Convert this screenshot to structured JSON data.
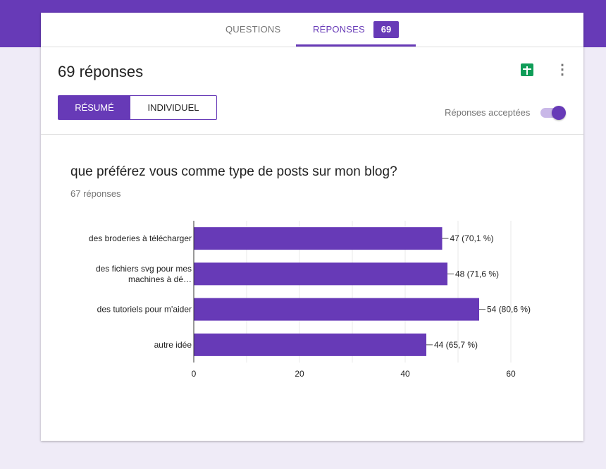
{
  "header": {
    "tabs": [
      {
        "label": "QUESTIONS"
      },
      {
        "label": "RÉPONSES",
        "badge": "69",
        "active": true
      }
    ]
  },
  "summary": {
    "title": "69 réponses",
    "sheets_icon": "google-sheets-icon",
    "more_icon": "more-vert-icon",
    "view_tabs": [
      "RÉSUMÉ",
      "INDIVIDUEL"
    ],
    "accepting_label": "Réponses acceptées",
    "accepting": true
  },
  "question": {
    "title": "que préférez vous comme type de posts sur mon blog?",
    "count": "67 réponses"
  },
  "colors": {
    "accent": "#673ab7",
    "sheets": "#0f9d58"
  },
  "chart_data": {
    "type": "bar",
    "orientation": "horizontal",
    "categories": [
      [
        "des broderies à télécharger"
      ],
      [
        "des fichiers svg pour mes",
        "machines à dé…"
      ],
      [
        "des tutoriels pour m'aider"
      ],
      [
        "autre idée"
      ]
    ],
    "values": [
      47,
      48,
      54,
      44
    ],
    "data_labels": [
      "47 (70,1 %)",
      "48 (71,6 %)",
      "54 (80,6 %)",
      "44 (65,7 %)"
    ],
    "xlim": [
      0,
      60
    ],
    "xticks": [
      "0",
      "20",
      "40",
      "60"
    ],
    "grid": true
  }
}
